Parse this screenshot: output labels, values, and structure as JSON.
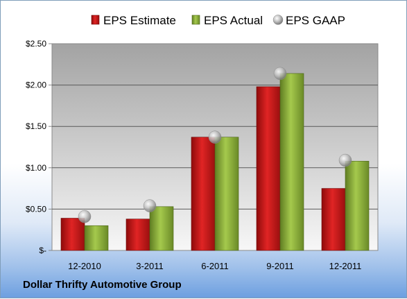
{
  "chart_data": {
    "type": "bar",
    "categories": [
      "12-2010",
      "3-2011",
      "6-2011",
      "9-2011",
      "12-2011"
    ],
    "series": [
      {
        "name": "EPS Estimate",
        "values": [
          0.39,
          0.38,
          1.37,
          1.98,
          0.75
        ],
        "color": "#d11a1a"
      },
      {
        "name": "EPS Actual",
        "values": [
          0.3,
          0.53,
          1.37,
          2.14,
          1.08
        ],
        "color": "#8fb23a"
      },
      {
        "name": "EPS GAAP",
        "values": [
          0.41,
          0.54,
          1.37,
          2.14,
          1.09
        ],
        "color": "#b8b8b8",
        "marker": "circle"
      }
    ],
    "yticks": [
      "$2.50",
      "$2.00",
      "$1.50",
      "$1.00",
      "$0.50",
      "$-"
    ],
    "ytick_values": [
      2.5,
      2.0,
      1.5,
      1.0,
      0.5,
      0
    ],
    "ylim": [
      0,
      2.5
    ],
    "grid": true,
    "legend_position": "top"
  },
  "footer": {
    "company": "Dollar Thrifty Automotive Group"
  }
}
